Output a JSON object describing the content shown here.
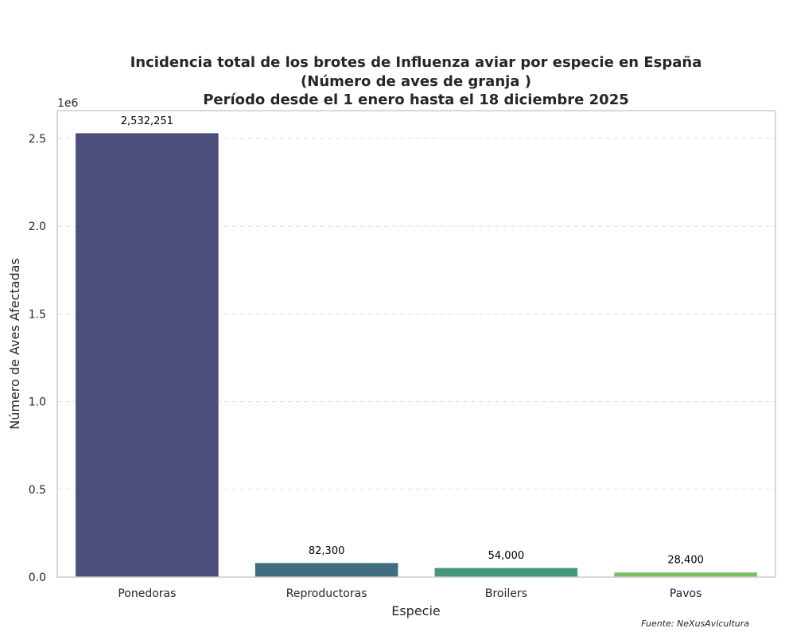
{
  "chart_data": {
    "type": "bar",
    "title_lines": [
      "Incidencia total de los brotes de Influenza aviar por especie en España",
      "(Número de aves de granja )",
      "Período desde el 1 enero hasta el 18 diciembre 2025"
    ],
    "xlabel": "Especie",
    "ylabel": "Número de Aves Afectadas",
    "y_offset_label": "1e6",
    "categories": [
      "Ponedoras",
      "Reproductoras",
      "Broilers",
      "Pavos"
    ],
    "values": [
      2532251,
      82300,
      54000,
      28400
    ],
    "value_labels": [
      "2,532,251",
      "82,300",
      "54,000",
      "28,400"
    ],
    "colors": [
      "#4c4e7c",
      "#3e6e7f",
      "#46987a",
      "#7bbf63"
    ],
    "ylim": [
      0,
      2658864
    ],
    "yticks": [
      0,
      500000,
      1000000,
      1500000,
      2000000,
      2500000
    ],
    "ytick_labels": [
      "0.0",
      "0.5",
      "1.0",
      "1.5",
      "2.0",
      "2.5"
    ],
    "grid": "y-dashed",
    "legend": "none"
  },
  "source_note": "Fuente: NeXusAvicultura"
}
